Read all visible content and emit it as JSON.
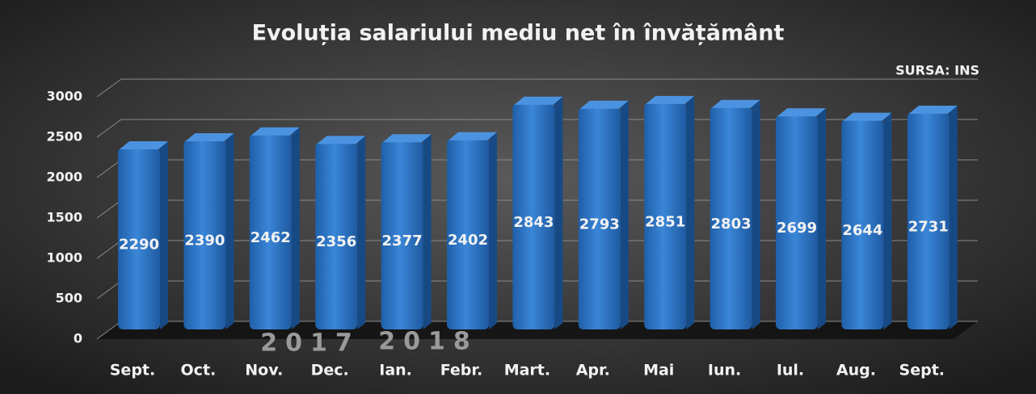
{
  "chart_data": {
    "type": "bar",
    "title": "Evoluția salariului mediu net în învățământ",
    "source": "SURSA: INS",
    "annotations": [
      "2017",
      "2018"
    ],
    "categories": [
      "Sept.",
      "Oct.",
      "Nov.",
      "Dec.",
      "Ian.",
      "Febr.",
      "Mart.",
      "Apr.",
      "Mai",
      "Iun.",
      "Iul.",
      "Aug.",
      "Sept."
    ],
    "values": [
      2290,
      2390,
      2462,
      2356,
      2377,
      2402,
      2843,
      2793,
      2851,
      2803,
      2699,
      2644,
      2731
    ],
    "color": "#2e75c6",
    "ylim": [
      0,
      3000
    ],
    "yticks": [
      0,
      500,
      1000,
      1500,
      2000,
      2500,
      3000
    ],
    "grid": true
  }
}
